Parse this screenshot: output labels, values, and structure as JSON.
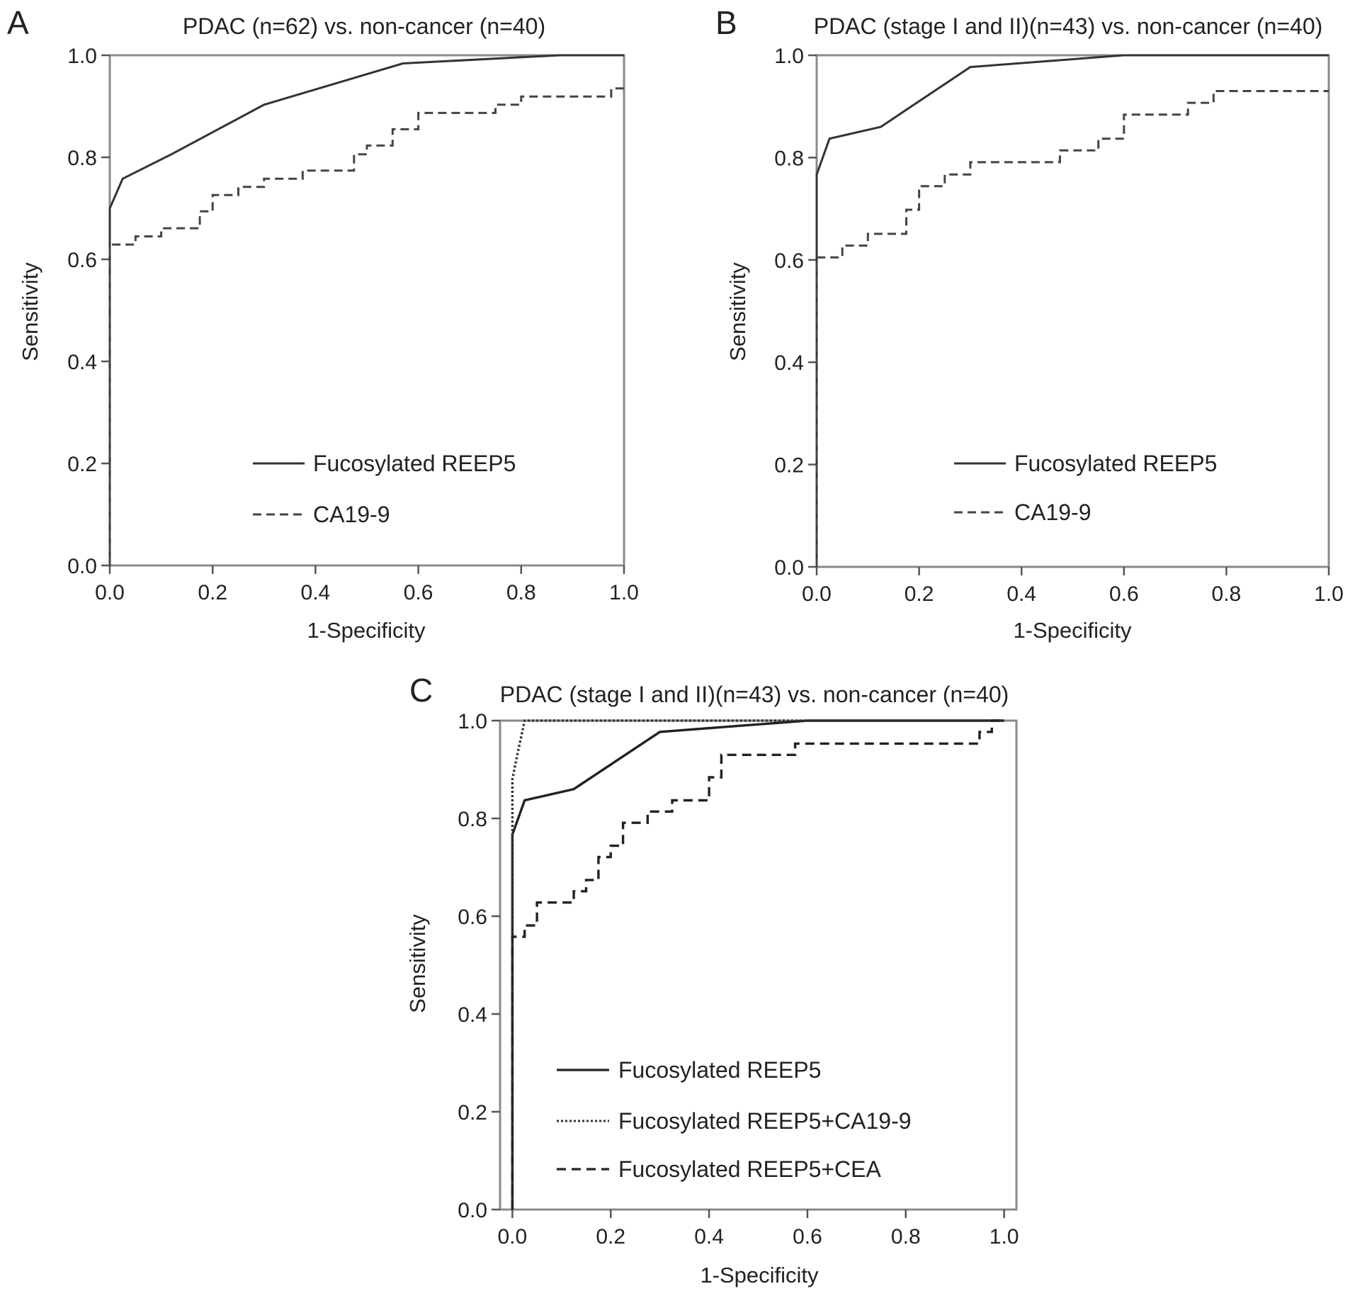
{
  "figure": {
    "panels": [
      {
        "letter": "A",
        "title": "PDAC (n=62) vs. non-cancer (n=40)",
        "xlabel": "1-Specificity",
        "ylabel": "Sensitivity"
      },
      {
        "letter": "B",
        "title": "PDAC (stage I and II)(n=43) vs. non-cancer (n=40)",
        "xlabel": "1-Specificity",
        "ylabel": "Sensitivity"
      },
      {
        "letter": "C",
        "title": "PDAC (stage I and II)(n=43) vs. non-cancer (n=40)",
        "xlabel": "1-Specificity",
        "ylabel": "Sensitivity"
      }
    ]
  },
  "chart_data": [
    {
      "type": "line",
      "title": "PDAC (n=62) vs. non-cancer (n=40)",
      "xlabel": "1-Specificity",
      "ylabel": "Sensitivity",
      "xlim": [
        0,
        1
      ],
      "ylim": [
        0,
        1
      ],
      "xticks": [
        "0.0",
        "0.2",
        "0.4",
        "0.6",
        "0.8",
        "1.0"
      ],
      "yticks": [
        "0.0",
        "0.2",
        "0.4",
        "0.6",
        "0.8",
        "1.0"
      ],
      "grid": false,
      "legend_position": "bottom-center",
      "series": [
        {
          "name": "Fucosylated REEP5",
          "style": "solid",
          "color": "#333333",
          "points": [
            [
              0,
              0
            ],
            [
              0,
              0.7
            ],
            [
              0.025,
              0.758
            ],
            [
              0.12,
              0.806
            ],
            [
              0.3,
              0.903
            ],
            [
              0.57,
              0.984
            ],
            [
              0.875,
              1.0
            ],
            [
              1.0,
              1.0
            ]
          ]
        },
        {
          "name": "CA19-9",
          "style": "dashed",
          "color": "#444444",
          "points": [
            [
              0,
              0
            ],
            [
              0,
              0.629
            ],
            [
              0.05,
              0.629
            ],
            [
              0.05,
              0.645
            ],
            [
              0.1,
              0.645
            ],
            [
              0.1,
              0.661
            ],
            [
              0.175,
              0.661
            ],
            [
              0.175,
              0.694
            ],
            [
              0.2,
              0.694
            ],
            [
              0.2,
              0.726
            ],
            [
              0.25,
              0.726
            ],
            [
              0.25,
              0.742
            ],
            [
              0.3,
              0.742
            ],
            [
              0.3,
              0.758
            ],
            [
              0.375,
              0.758
            ],
            [
              0.375,
              0.774
            ],
            [
              0.475,
              0.774
            ],
            [
              0.475,
              0.806
            ],
            [
              0.5,
              0.806
            ],
            [
              0.5,
              0.823
            ],
            [
              0.55,
              0.823
            ],
            [
              0.55,
              0.855
            ],
            [
              0.6,
              0.855
            ],
            [
              0.6,
              0.887
            ],
            [
              0.7,
              0.887
            ],
            [
              0.75,
              0.887
            ],
            [
              0.75,
              0.903
            ],
            [
              0.8,
              0.903
            ],
            [
              0.8,
              0.919
            ],
            [
              0.975,
              0.919
            ],
            [
              0.975,
              0.935
            ],
            [
              1.0,
              0.935
            ]
          ]
        }
      ]
    },
    {
      "type": "line",
      "title": "PDAC (stage I and II)(n=43) vs. non-cancer (n=40)",
      "xlabel": "1-Specificity",
      "ylabel": "Sensitivity",
      "xlim": [
        0,
        1
      ],
      "ylim": [
        0,
        1
      ],
      "xticks": [
        "0.0",
        "0.2",
        "0.4",
        "0.6",
        "0.8",
        "1.0"
      ],
      "yticks": [
        "0.0",
        "0.2",
        "0.4",
        "0.6",
        "0.8",
        "1.0"
      ],
      "grid": false,
      "legend_position": "bottom-center",
      "series": [
        {
          "name": "Fucosylated REEP5",
          "style": "solid",
          "color": "#333333",
          "points": [
            [
              0,
              0
            ],
            [
              0,
              0.767
            ],
            [
              0.025,
              0.837
            ],
            [
              0.125,
              0.86
            ],
            [
              0.3,
              0.977
            ],
            [
              0.6,
              1.0
            ],
            [
              1.0,
              1.0
            ]
          ]
        },
        {
          "name": "CA19-9",
          "style": "dashed",
          "color": "#444444",
          "points": [
            [
              0,
              0
            ],
            [
              0,
              0.605
            ],
            [
              0.05,
              0.605
            ],
            [
              0.05,
              0.628
            ],
            [
              0.1,
              0.628
            ],
            [
              0.1,
              0.651
            ],
            [
              0.175,
              0.651
            ],
            [
              0.175,
              0.698
            ],
            [
              0.2,
              0.698
            ],
            [
              0.2,
              0.744
            ],
            [
              0.25,
              0.744
            ],
            [
              0.25,
              0.767
            ],
            [
              0.3,
              0.767
            ],
            [
              0.3,
              0.791
            ],
            [
              0.475,
              0.791
            ],
            [
              0.475,
              0.814
            ],
            [
              0.55,
              0.814
            ],
            [
              0.55,
              0.837
            ],
            [
              0.6,
              0.837
            ],
            [
              0.6,
              0.884
            ],
            [
              0.725,
              0.884
            ],
            [
              0.725,
              0.907
            ],
            [
              0.775,
              0.907
            ],
            [
              0.775,
              0.93
            ],
            [
              1.0,
              0.93
            ]
          ]
        }
      ]
    },
    {
      "type": "line",
      "title": "PDAC (stage I and II)(n=43) vs. non-cancer (n=40)",
      "xlabel": "1-Specificity",
      "ylabel": "Sensitivity",
      "xlim": [
        -0.025,
        1.025
      ],
      "ylim": [
        0,
        1
      ],
      "xticks": [
        "0.0",
        "0.2",
        "0.4",
        "0.6",
        "0.8",
        "1.0"
      ],
      "yticks": [
        "0.0",
        "0.2",
        "0.4",
        "0.6",
        "0.8",
        "1.0"
      ],
      "grid": false,
      "legend_position": "bottom-center",
      "series": [
        {
          "name": "Fucosylated REEP5",
          "style": "solid",
          "color": "#222222",
          "points": [
            [
              0,
              0
            ],
            [
              0,
              0.767
            ],
            [
              0.025,
              0.837
            ],
            [
              0.125,
              0.86
            ],
            [
              0.3,
              0.977
            ],
            [
              0.6,
              1.0
            ],
            [
              1.0,
              1.0
            ]
          ]
        },
        {
          "name": "Fucosylated REEP5+CA19-9",
          "style": "dotted",
          "color": "#333333",
          "points": [
            [
              0,
              0
            ],
            [
              0,
              0.88
            ],
            [
              0.01,
              0.93
            ],
            [
              0.025,
              1.0
            ],
            [
              1.0,
              1.0
            ]
          ]
        },
        {
          "name": "Fucosylated REEP5+CEA",
          "style": "dashed",
          "color": "#222222",
          "points": [
            [
              0,
              0
            ],
            [
              0,
              0.558
            ],
            [
              0.025,
              0.558
            ],
            [
              0.025,
              0.581
            ],
            [
              0.05,
              0.581
            ],
            [
              0.05,
              0.628
            ],
            [
              0.125,
              0.628
            ],
            [
              0.125,
              0.651
            ],
            [
              0.15,
              0.651
            ],
            [
              0.15,
              0.674
            ],
            [
              0.175,
              0.674
            ],
            [
              0.175,
              0.721
            ],
            [
              0.2,
              0.721
            ],
            [
              0.2,
              0.744
            ],
            [
              0.225,
              0.744
            ],
            [
              0.225,
              0.791
            ],
            [
              0.275,
              0.791
            ],
            [
              0.275,
              0.814
            ],
            [
              0.325,
              0.814
            ],
            [
              0.325,
              0.837
            ],
            [
              0.4,
              0.837
            ],
            [
              0.4,
              0.884
            ],
            [
              0.425,
              0.884
            ],
            [
              0.425,
              0.93
            ],
            [
              0.575,
              0.93
            ],
            [
              0.575,
              0.953
            ],
            [
              0.95,
              0.953
            ],
            [
              0.95,
              0.977
            ],
            [
              0.975,
              0.977
            ],
            [
              0.975,
              1.0
            ],
            [
              1.0,
              1.0
            ]
          ]
        }
      ]
    }
  ]
}
